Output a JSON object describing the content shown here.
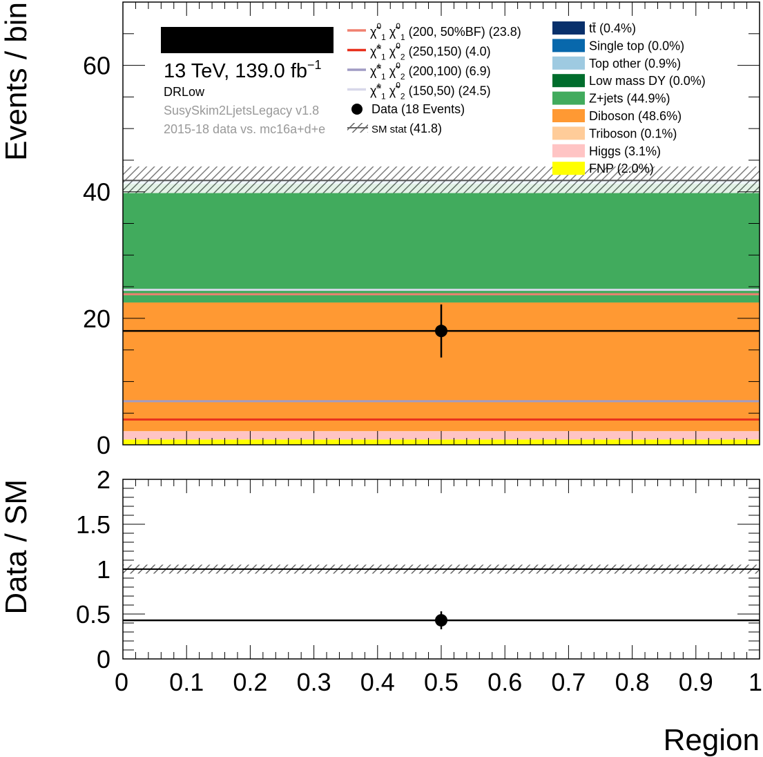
{
  "chart_data": [
    {
      "type": "bar",
      "panel": "main",
      "ylabel": "Events / bin",
      "ylim": [
        0,
        70
      ],
      "y_ticks": [
        "0",
        "20",
        "40",
        "60"
      ],
      "x_range": [
        0,
        1
      ],
      "bin": [
        0,
        1
      ],
      "stack": [
        {
          "name": "FNP (2.0%)",
          "value": 0.84,
          "color": "#ffff00"
        },
        {
          "name": "Higgs (3.1%)",
          "value": 1.3,
          "color": "#ffc4c4"
        },
        {
          "name": "Triboson (0.1%)",
          "value": 0.04,
          "color": "#ffcc99"
        },
        {
          "name": "Diboson (48.6%)",
          "value": 20.32,
          "color": "#ff9933"
        },
        {
          "name": "Z+jets (44.9%)",
          "value": 18.77,
          "color": "#41ab5d"
        },
        {
          "name": "Low mass DY (0.0%)",
          "value": 0.0,
          "color": "#006d2c"
        },
        {
          "name": "Top other (0.9%)",
          "value": 0.38,
          "color": "#9ecae1"
        },
        {
          "name": "Single top (0.0%)",
          "value": 0.0,
          "color": "#0868ac"
        },
        {
          "name": "tt̄ (0.4%)",
          "value": 0.17,
          "color": "#08306b"
        }
      ],
      "sm_total": 41.8,
      "sm_stat_band": [
        39.8,
        44.0
      ],
      "signals": [
        {
          "label_sub": "(200, 50%BF) (23.8)",
          "value": 23.8,
          "color": "#f08070"
        },
        {
          "label_sub": "(250,150) (4.0)",
          "value": 4.0,
          "color": "#e8301c"
        },
        {
          "label_sub": "(200,100) (6.9)",
          "value": 6.9,
          "color": "#a09cc4"
        },
        {
          "label_sub": "(150,50) (24.5)",
          "value": 24.5,
          "color": "#d8d8ea"
        }
      ],
      "data": {
        "x": 0.5,
        "y": 18,
        "yerr": [
          4.2,
          4.2
        ],
        "label": "Data (18 Events)"
      },
      "sm_stat_label": "SM stat",
      "sm_stat_value": "(41.8)"
    },
    {
      "type": "scatter",
      "panel": "ratio",
      "ylabel": "Data / SM",
      "xlabel": "Region",
      "ylim": [
        0,
        2
      ],
      "y_ticks": [
        "0",
        "0.5",
        "1",
        "1.5",
        "2"
      ],
      "x_ticks": [
        "0",
        "0.1",
        "0.2",
        "0.3",
        "0.4",
        "0.5",
        "0.6",
        "0.7",
        "0.8",
        "0.9",
        "1"
      ],
      "ratio": {
        "x": 0.5,
        "y": 0.43,
        "yerr": [
          0.1,
          0.1
        ]
      },
      "stat_band": [
        0.95,
        1.05
      ],
      "reference": 1.0
    }
  ],
  "annotations": {
    "energy_lumi": "13 TeV, 139.0 fb",
    "lumi_exp": "−1",
    "region": "DRLow",
    "ntuple": "SusySkim2LjetsLegacy v1.8",
    "samples": "2015-18 data vs. mc16a+d+e"
  },
  "signal_symbols": [
    {
      "a": "χ",
      "a_sup": "0",
      "a_sub": "1",
      "b": "χ",
      "b_sup": "0",
      "b_sub": "1"
    },
    {
      "a": "χ",
      "a_sup": "±",
      "a_sub": "1",
      "b": "χ",
      "b_sup": "0",
      "b_sub": "2"
    },
    {
      "a": "χ",
      "a_sup": "±",
      "a_sub": "1",
      "b": "χ",
      "b_sup": "0",
      "b_sub": "2"
    },
    {
      "a": "χ",
      "a_sup": "±",
      "a_sub": "1",
      "b": "χ",
      "b_sup": "0",
      "b_sub": "2"
    }
  ],
  "colors": {
    "frame": "#000000",
    "text_grey": "#999999",
    "hatch": "#666666"
  }
}
